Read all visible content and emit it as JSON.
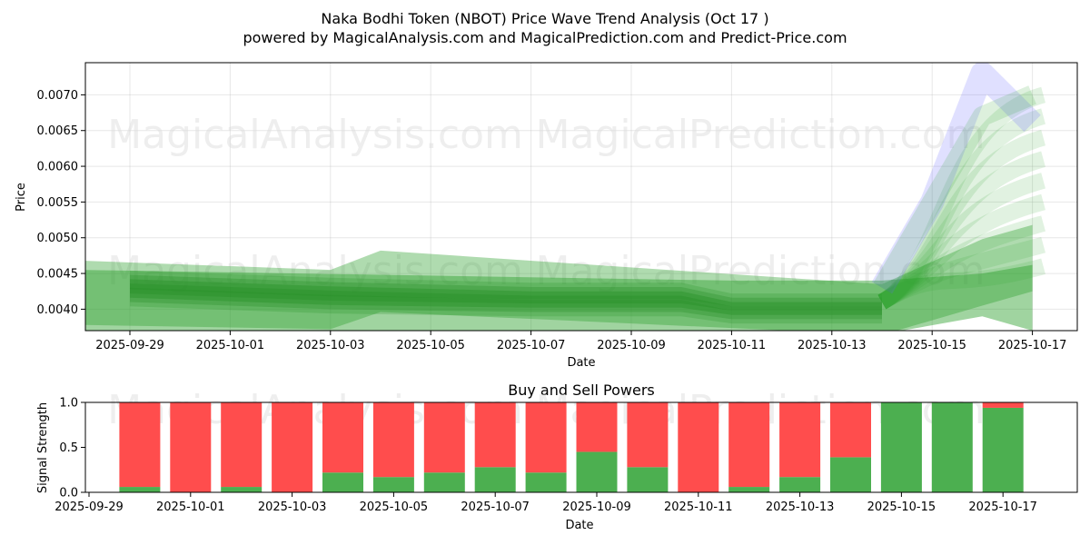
{
  "title": "Naka Bodhi Token (NBOT) Price Wave Trend Analysis (Oct 17 )",
  "subtitle": "powered by MagicalAnalysis.com and MagicalPrediction.com and Predict-Price.com",
  "watermarks": [
    "MagicalAnalysis.com",
    "MagicalPrediction.com"
  ],
  "colors": {
    "actual": "#228b22",
    "forecast_green": "#2ca02c",
    "forecast_blue": "#6666ff",
    "buy": "#4caf50",
    "sell": "#ff4d4d"
  },
  "chart_data": [
    {
      "type": "line",
      "title": "",
      "xlabel": "Date",
      "ylabel": "Price",
      "grid": true,
      "xlim": [
        "2025-09-28",
        "2025-10-17"
      ],
      "ylim": [
        0.0037,
        0.00745
      ],
      "x_tick_labels": [
        "2025-09-29",
        "2025-10-01",
        "2025-10-03",
        "2025-10-05",
        "2025-10-07",
        "2025-10-09",
        "2025-10-11",
        "2025-10-13",
        "2025-10-15",
        "2025-10-17"
      ],
      "y_tick_labels": [
        "0.0040",
        "0.0045",
        "0.0050",
        "0.0055",
        "0.0060",
        "0.0065",
        "0.0070"
      ],
      "y_tick_values": [
        0.004,
        0.0045,
        0.005,
        0.0055,
        0.006,
        0.0065,
        0.007
      ],
      "series": [
        {
          "name": "actual-band",
          "color": "#228b22",
          "x": [
            "2025-09-29",
            "2025-10-03",
            "2025-10-07",
            "2025-10-10",
            "2025-10-11",
            "2025-10-14"
          ],
          "upper": [
            0.00442,
            0.00432,
            0.00425,
            0.00425,
            0.0041,
            0.0041
          ],
          "lower": [
            0.00416,
            0.00406,
            0.00402,
            0.00402,
            0.00392,
            0.00392
          ]
        },
        {
          "name": "wide-band-1",
          "color": "#2ca02c",
          "x": [
            "2025-09-28",
            "2025-10-03",
            "2025-10-04",
            "2025-10-14",
            "2025-10-16",
            "2025-10-17"
          ],
          "upper": [
            0.00468,
            0.00455,
            0.00482,
            0.00435,
            0.00498,
            0.00518
          ],
          "lower": [
            0.00378,
            0.00372,
            0.00396,
            0.00364,
            0.00405,
            0.00425
          ]
        },
        {
          "name": "wide-band-2",
          "color": "#2ca02c",
          "x": [
            "2025-09-28",
            "2025-10-11",
            "2025-10-14",
            "2025-10-16",
            "2025-10-17"
          ],
          "upper": [
            0.00455,
            0.0044,
            0.0044,
            0.0045,
            0.00462
          ],
          "lower": [
            0.0037,
            0.00365,
            0.00365,
            0.0039,
            0.0037
          ]
        },
        {
          "name": "forecast-green-wave",
          "color": "#2ca02c",
          "x": [
            "2025-10-14",
            "2025-10-15",
            "2025-10-16",
            "2025-10-17"
          ],
          "values": [
            0.0043,
            0.0055,
            0.0067,
            0.007
          ]
        },
        {
          "name": "forecast-blue-wave",
          "color": "#6666ff",
          "x": [
            "2025-10-14",
            "2025-10-15",
            "2025-10-16",
            "2025-10-17"
          ],
          "values": [
            0.0043,
            0.0055,
            0.0073,
            0.0066
          ]
        }
      ]
    },
    {
      "type": "bar",
      "title": "Buy and Sell Powers",
      "xlabel": "Date",
      "ylabel": "Signal Strength",
      "ylim": [
        0,
        1
      ],
      "stacked": true,
      "x_tick_labels": [
        "2025-09-29",
        "2025-10-01",
        "2025-10-03",
        "2025-10-05",
        "2025-10-07",
        "2025-10-09",
        "2025-10-11",
        "2025-10-13",
        "2025-10-15",
        "2025-10-17"
      ],
      "y_tick_labels": [
        "0.0",
        "0.5",
        "1.0"
      ],
      "categories": [
        "2025-09-30",
        "2025-10-01",
        "2025-10-02",
        "2025-10-03",
        "2025-10-04",
        "2025-10-05",
        "2025-10-06",
        "2025-10-07",
        "2025-10-08",
        "2025-10-09",
        "2025-10-10",
        "2025-10-11",
        "2025-10-12",
        "2025-10-13",
        "2025-10-14",
        "2025-10-15",
        "2025-10-16",
        "2025-10-17"
      ],
      "series": [
        {
          "name": "Buy",
          "color": "#4caf50",
          "values": [
            0.06,
            0.0,
            0.06,
            0.0,
            0.22,
            0.17,
            0.22,
            0.28,
            0.22,
            0.45,
            0.28,
            0.0,
            0.06,
            0.17,
            0.39,
            1.0,
            1.0,
            0.94
          ]
        },
        {
          "name": "Sell",
          "color": "#ff4d4d",
          "values": [
            0.94,
            1.0,
            0.94,
            1.0,
            0.78,
            0.83,
            0.78,
            0.72,
            0.78,
            0.55,
            0.72,
            1.0,
            0.94,
            0.83,
            0.61,
            0.0,
            0.0,
            0.06
          ]
        }
      ]
    }
  ]
}
